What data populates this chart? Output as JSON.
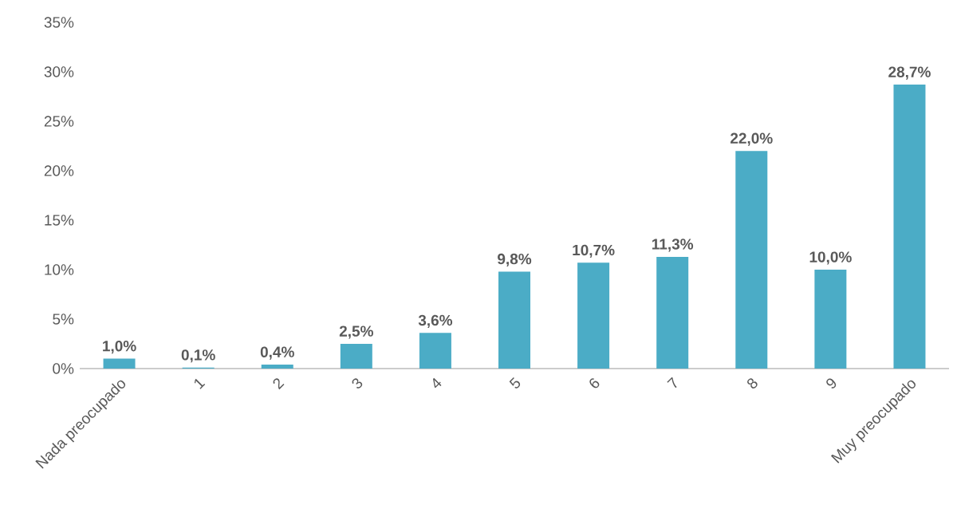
{
  "chart_data": {
    "type": "bar",
    "categories": [
      "Nada preocupado",
      "1",
      "2",
      "3",
      "4",
      "5",
      "6",
      "7",
      "8",
      "9",
      "Muy preocupado"
    ],
    "values": [
      1.0,
      0.1,
      0.4,
      2.5,
      3.6,
      9.8,
      10.7,
      11.3,
      22.0,
      10.0,
      28.7
    ],
    "value_labels": [
      "1,0%",
      "0,1%",
      "0,4%",
      "2,5%",
      "3,6%",
      "9,8%",
      "10,7%",
      "11,3%",
      "22,0%",
      "10,0%",
      "28,7%"
    ],
    "color": "#4bacc6",
    "ylim": [
      0,
      35
    ],
    "yticks": [
      {
        "value": 0,
        "label": "0%"
      },
      {
        "value": 5,
        "label": "5%"
      },
      {
        "value": 10,
        "label": "10%"
      },
      {
        "value": 15,
        "label": "15%"
      },
      {
        "value": 20,
        "label": "20%"
      },
      {
        "value": 25,
        "label": "25%"
      },
      {
        "value": 30,
        "label": "30%"
      },
      {
        "value": 35,
        "label": "35%"
      }
    ]
  }
}
